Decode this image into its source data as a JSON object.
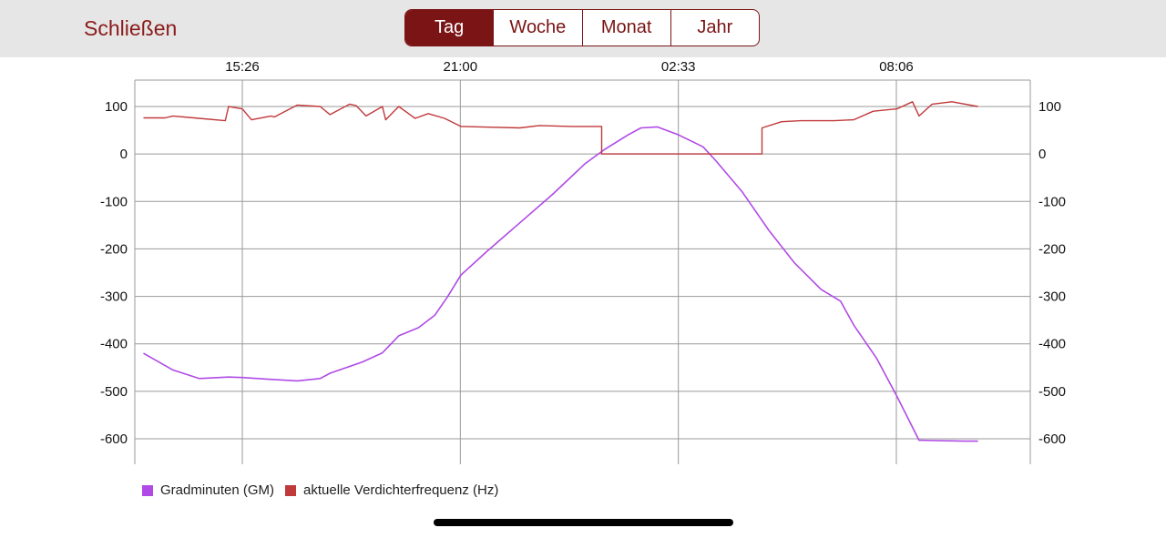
{
  "header": {
    "close_label": "Schließen",
    "tabs": [
      {
        "label": "Tag",
        "active": true
      },
      {
        "label": "Woche",
        "active": false
      },
      {
        "label": "Monat",
        "active": false
      },
      {
        "label": "Jahr",
        "active": false
      }
    ],
    "accent_color": "#7b1414"
  },
  "chart_data": {
    "type": "line",
    "title": "",
    "x_tick_labels": [
      "15:26",
      "21:00",
      "02:33",
      "08:06"
    ],
    "ylim": [
      -650,
      150
    ],
    "y_ticks": [
      100,
      0,
      -100,
      -200,
      -300,
      -400,
      -500,
      -600
    ],
    "y_axes": "left and right, identical scale",
    "grid": true,
    "legend_position": "bottom-left",
    "series": [
      {
        "name": "Gradminuten (GM)",
        "color": "#b04ae6",
        "x": [
          "12:55",
          "13:40",
          "14:20",
          "15:05",
          "15:26",
          "16:00",
          "16:50",
          "17:25",
          "17:40",
          "18:05",
          "18:30",
          "19:00",
          "19:25",
          "19:55",
          "20:20",
          "20:40",
          "21:00",
          "21:40",
          "22:30",
          "23:20",
          "00:10",
          "00:40",
          "01:15",
          "01:35",
          "02:00",
          "02:33",
          "03:10",
          "03:30",
          "04:10",
          "04:50",
          "05:30",
          "06:10",
          "06:40",
          "07:00",
          "07:35",
          "08:06",
          "08:40",
          "09:50",
          "10:10"
        ],
        "values": [
          -420,
          -455,
          -473,
          -470,
          -471,
          -474,
          -478,
          -473,
          -462,
          -450,
          -438,
          -419,
          -383,
          -366,
          -340,
          -300,
          -255,
          -205,
          -145,
          -85,
          -20,
          10,
          40,
          55,
          57,
          40,
          15,
          -15,
          -80,
          -160,
          -230,
          -285,
          -310,
          -360,
          -430,
          -510,
          -603,
          -605,
          -605
        ]
      },
      {
        "name": "aktuelle Verdichterfrequenz (Hz)",
        "color": "#c0393b",
        "x": [
          "12:55",
          "13:28",
          "13:40",
          "14:20",
          "15:00",
          "15:05",
          "15:26",
          "15:40",
          "16:10",
          "16:15",
          "16:50",
          "17:25",
          "17:40",
          "18:10",
          "18:20",
          "18:35",
          "19:00",
          "19:05",
          "19:25",
          "19:50",
          "20:10",
          "20:35",
          "21:00",
          "21:30",
          "22:30",
          "23:00",
          "23:50",
          "00:35",
          "00:35",
          "04:40",
          "04:40",
          "05:10",
          "05:40",
          "06:30",
          "07:00",
          "07:30",
          "08:06",
          "08:30",
          "08:40",
          "09:00",
          "09:30",
          "10:10"
        ],
        "values": [
          76,
          76,
          80,
          75,
          70,
          100,
          95,
          72,
          80,
          78,
          103,
          100,
          83,
          105,
          102,
          80,
          100,
          72,
          100,
          75,
          85,
          75,
          58,
          57,
          55,
          60,
          58,
          58,
          0,
          0,
          55,
          68,
          70,
          70,
          72,
          90,
          95,
          110,
          80,
          105,
          110,
          100
        ]
      }
    ]
  }
}
